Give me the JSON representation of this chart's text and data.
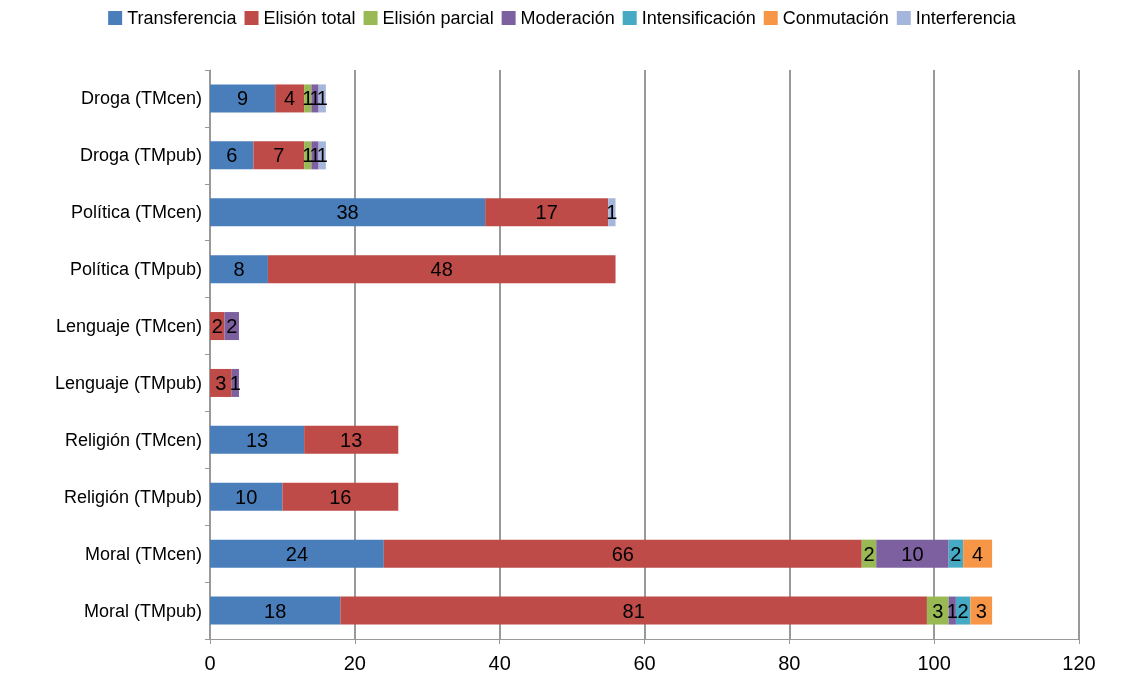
{
  "chart_data": {
    "type": "bar",
    "orientation": "horizontal",
    "stacked": true,
    "data_labels": true,
    "legend": "top",
    "grid": "x",
    "categories": [
      "Droga (TMcen)",
      "Droga (TMpub)",
      "Política (TMcen)",
      "Política (TMpub)",
      "Lenguaje (TMcen)",
      "Lenguaje (TMpub)",
      "Religión (TMcen)",
      "Religión (TMpub)",
      "Moral (TMcen)",
      "Moral (TMpub)"
    ],
    "xlim": [
      0,
      120
    ],
    "xticks": [
      0,
      20,
      40,
      60,
      80,
      100,
      120
    ],
    "series": [
      {
        "name": "Transferencia",
        "color": "#4a7ebb",
        "values": [
          9,
          6,
          38,
          8,
          null,
          null,
          13,
          10,
          24,
          18
        ]
      },
      {
        "name": "Elisión total",
        "color": "#be4b48",
        "values": [
          4,
          7,
          17,
          48,
          2,
          3,
          13,
          16,
          66,
          81
        ]
      },
      {
        "name": "Elisión parcial",
        "color": "#98b954",
        "values": [
          1,
          1,
          null,
          null,
          null,
          null,
          null,
          null,
          2,
          3
        ]
      },
      {
        "name": "Moderación",
        "color": "#7d60a0",
        "values": [
          1,
          1,
          null,
          null,
          2,
          1,
          null,
          null,
          10,
          1
        ]
      },
      {
        "name": "Intensificación",
        "color": "#46aac5",
        "values": [
          null,
          null,
          null,
          null,
          null,
          null,
          null,
          null,
          2,
          2
        ]
      },
      {
        "name": "Conmutación",
        "color": "#f79646",
        "values": [
          null,
          null,
          null,
          null,
          null,
          null,
          null,
          null,
          4,
          3
        ]
      },
      {
        "name": "Interferencia",
        "color": "#a5b6dc",
        "values": [
          1,
          1,
          1,
          null,
          null,
          null,
          null,
          null,
          null,
          null
        ]
      }
    ]
  }
}
